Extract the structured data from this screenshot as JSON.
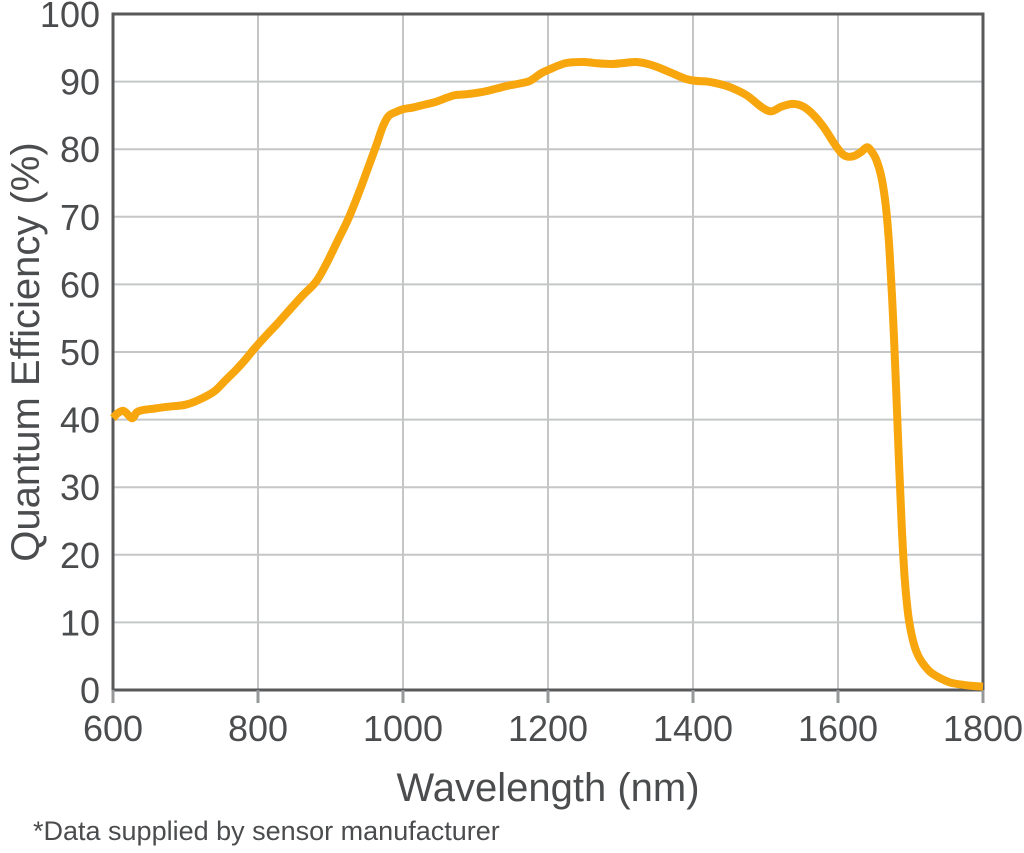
{
  "chart_data": {
    "type": "line",
    "title": "",
    "xlabel": "Wavelength (nm)",
    "ylabel": "Quantum Efficiency (%)",
    "xlim": [
      600,
      1800
    ],
    "ylim": [
      0,
      100
    ],
    "x_ticks": [
      600,
      800,
      1000,
      1200,
      1400,
      1600,
      1800
    ],
    "y_ticks": [
      0,
      10,
      20,
      30,
      40,
      50,
      60,
      70,
      80,
      90,
      100
    ],
    "grid": true,
    "legend": "none",
    "series": [
      {
        "name": "Quantum Efficiency",
        "color": "#F7A60D",
        "points": [
          [
            600,
            40.2
          ],
          [
            606,
            40.9
          ],
          [
            614,
            41.3
          ],
          [
            621,
            40.7
          ],
          [
            627,
            40.2
          ],
          [
            633,
            41.1
          ],
          [
            641,
            41.4
          ],
          [
            655,
            41.6
          ],
          [
            675,
            41.9
          ],
          [
            700,
            42.2
          ],
          [
            720,
            43.0
          ],
          [
            740,
            44.2
          ],
          [
            755,
            45.8
          ],
          [
            770,
            47.4
          ],
          [
            782,
            48.8
          ],
          [
            795,
            50.5
          ],
          [
            810,
            52.3
          ],
          [
            825,
            54.0
          ],
          [
            840,
            55.8
          ],
          [
            860,
            58.2
          ],
          [
            880,
            60.4
          ],
          [
            895,
            63.2
          ],
          [
            910,
            66.5
          ],
          [
            925,
            69.8
          ],
          [
            940,
            73.8
          ],
          [
            952,
            77.3
          ],
          [
            962,
            80.2
          ],
          [
            972,
            83.3
          ],
          [
            980,
            84.9
          ],
          [
            990,
            85.5
          ],
          [
            1000,
            85.9
          ],
          [
            1015,
            86.2
          ],
          [
            1030,
            86.6
          ],
          [
            1045,
            87.0
          ],
          [
            1060,
            87.6
          ],
          [
            1072,
            88.0
          ],
          [
            1085,
            88.1
          ],
          [
            1100,
            88.3
          ],
          [
            1115,
            88.6
          ],
          [
            1130,
            89.0
          ],
          [
            1145,
            89.4
          ],
          [
            1160,
            89.7
          ],
          [
            1175,
            90.1
          ],
          [
            1190,
            91.2
          ],
          [
            1202,
            91.8
          ],
          [
            1215,
            92.4
          ],
          [
            1228,
            92.8
          ],
          [
            1250,
            92.9
          ],
          [
            1268,
            92.7
          ],
          [
            1288,
            92.6
          ],
          [
            1308,
            92.8
          ],
          [
            1322,
            92.9
          ],
          [
            1338,
            92.6
          ],
          [
            1352,
            92.1
          ],
          [
            1370,
            91.3
          ],
          [
            1390,
            90.4
          ],
          [
            1405,
            90.1
          ],
          [
            1420,
            90.0
          ],
          [
            1438,
            89.6
          ],
          [
            1455,
            89.0
          ],
          [
            1475,
            87.9
          ],
          [
            1495,
            86.2
          ],
          [
            1508,
            85.6
          ],
          [
            1522,
            86.3
          ],
          [
            1538,
            86.7
          ],
          [
            1552,
            86.3
          ],
          [
            1565,
            85.2
          ],
          [
            1580,
            83.3
          ],
          [
            1595,
            80.8
          ],
          [
            1605,
            79.4
          ],
          [
            1613,
            78.9
          ],
          [
            1622,
            79.0
          ],
          [
            1632,
            79.6
          ],
          [
            1640,
            80.3
          ],
          [
            1646,
            79.7
          ],
          [
            1653,
            78.4
          ],
          [
            1660,
            75.8
          ],
          [
            1666,
            71.5
          ],
          [
            1671,
            65.0
          ],
          [
            1676,
            55.0
          ],
          [
            1680,
            45.0
          ],
          [
            1684,
            34.0
          ],
          [
            1688,
            24.0
          ],
          [
            1692,
            16.5
          ],
          [
            1697,
            11.0
          ],
          [
            1703,
            7.5
          ],
          [
            1710,
            5.2
          ],
          [
            1718,
            3.8
          ],
          [
            1728,
            2.6
          ],
          [
            1740,
            1.8
          ],
          [
            1755,
            1.1
          ],
          [
            1770,
            0.8
          ],
          [
            1785,
            0.6
          ],
          [
            1800,
            0.5
          ]
        ]
      }
    ]
  },
  "footnote": "*Data supplied by sensor manufacturer",
  "colors": {
    "background": "#ffffff",
    "axis_border": "#58595b",
    "gridline": "#c5c6c7",
    "tick": "#97989a",
    "text": "#4b4c4e",
    "curve": "#F7A60D"
  }
}
